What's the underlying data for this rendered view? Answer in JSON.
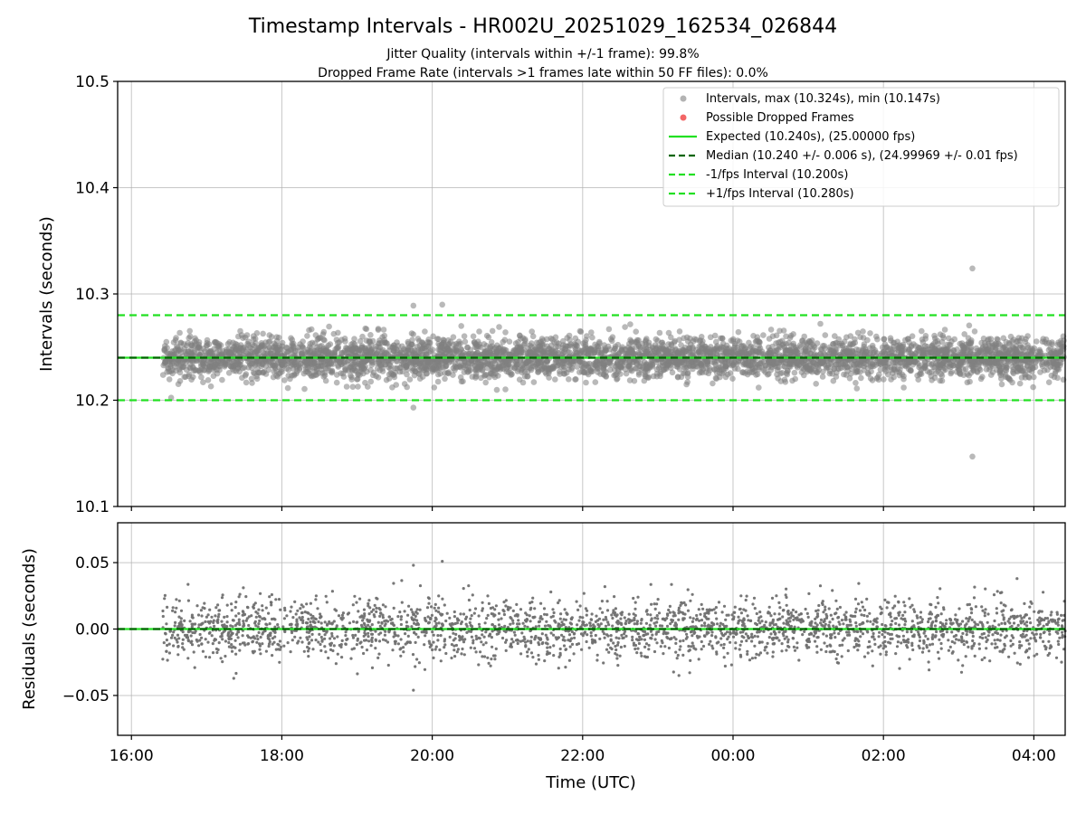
{
  "chart_data": [
    {
      "type": "scatter",
      "title": "Timestamp Intervals - HR002U_20251029_162534_026844",
      "subtitles": [
        "Jitter Quality (intervals within +/-1 frame): 99.8%",
        "Dropped Frame Rate (intervals >1 frames late within 50 FF files): 0.0%"
      ],
      "xlabel": "",
      "ylabel": "Intervals (seconds)",
      "xlim": [
        "2025-10-29 15:49",
        "2025-10-30 04:25"
      ],
      "ylim": [
        10.1,
        10.5
      ],
      "yticks": [
        "10.1",
        "10.2",
        "10.3",
        "10.4",
        "10.5"
      ],
      "grid": true,
      "legend_position": "top-right",
      "legend": [
        "Intervals, max (10.324s), min (10.147s)",
        "Possible Dropped Frames",
        "Expected (10.240s), (25.00000 fps)",
        "Median (10.240 +/- 0.006 s), (24.99969 +/- 0.01 fps)",
        "-1/fps Interval (10.200s)",
        "+1/fps Interval (10.280s)"
      ],
      "series": [
        {
          "name": "Intervals, max (10.324s), min (10.147s)",
          "kind": "scatter",
          "color": "#808080",
          "x_start": "2025-10-29 16:25",
          "x_end": "2025-10-30 04:25",
          "y_center": 10.24,
          "y_std": 0.0095,
          "count": 4200,
          "outliers": [
            {
              "x": "2025-10-30 03:11",
              "y": 10.324
            },
            {
              "x": "2025-10-30 03:11",
              "y": 10.147
            },
            {
              "x": "2025-10-29 19:45",
              "y": 10.289
            },
            {
              "x": "2025-10-29 20:08",
              "y": 10.29
            },
            {
              "x": "2025-10-29 19:45",
              "y": 10.193
            }
          ]
        },
        {
          "name": "Possible Dropped Frames",
          "kind": "scatter",
          "color": "#f04040",
          "count": 0
        },
        {
          "name": "Expected (10.240s), (25.00000 fps)",
          "kind": "hline",
          "y": 10.24,
          "color": "#22e022",
          "style": "solid"
        },
        {
          "name": "Median (10.240 +/- 0.006 s), (24.99969 +/- 0.01 fps)",
          "kind": "hline",
          "y": 10.24,
          "color": "#006400",
          "style": "dashed"
        },
        {
          "name": "-1/fps Interval (10.200s)",
          "kind": "hline",
          "y": 10.2,
          "color": "#22e022",
          "style": "dashed"
        },
        {
          "name": "+1/fps Interval (10.280s)",
          "kind": "hline",
          "y": 10.28,
          "color": "#22e022",
          "style": "dashed"
        }
      ]
    },
    {
      "type": "scatter",
      "xlabel": "Time (UTC)",
      "ylabel": "Residuals (seconds)",
      "xlim": [
        "2025-10-29 15:49",
        "2025-10-30 04:25"
      ],
      "ylim": [
        -0.08,
        0.08
      ],
      "xticks": [
        "16:00",
        "18:00",
        "20:00",
        "22:00",
        "00:00",
        "02:00",
        "04:00"
      ],
      "yticks": [
        "0.05",
        "0.00",
        "−0.05"
      ],
      "grid": true,
      "series": [
        {
          "kind": "scatter",
          "color": "#707070",
          "x_start": "2025-10-29 16:25",
          "x_end": "2025-10-30 04:25",
          "y_center": 0.0,
          "y_std": 0.011,
          "count": 2600,
          "outliers": [
            {
              "x": "2025-10-29 19:45",
              "y": 0.048
            },
            {
              "x": "2025-10-29 20:08",
              "y": 0.051
            },
            {
              "x": "2025-10-29 19:45",
              "y": -0.046
            }
          ]
        },
        {
          "kind": "hline",
          "y": 0.0,
          "color": "#22e022",
          "style": "solid"
        },
        {
          "kind": "hline",
          "y": 0.0,
          "color": "#006400",
          "style": "dashed"
        }
      ]
    }
  ]
}
